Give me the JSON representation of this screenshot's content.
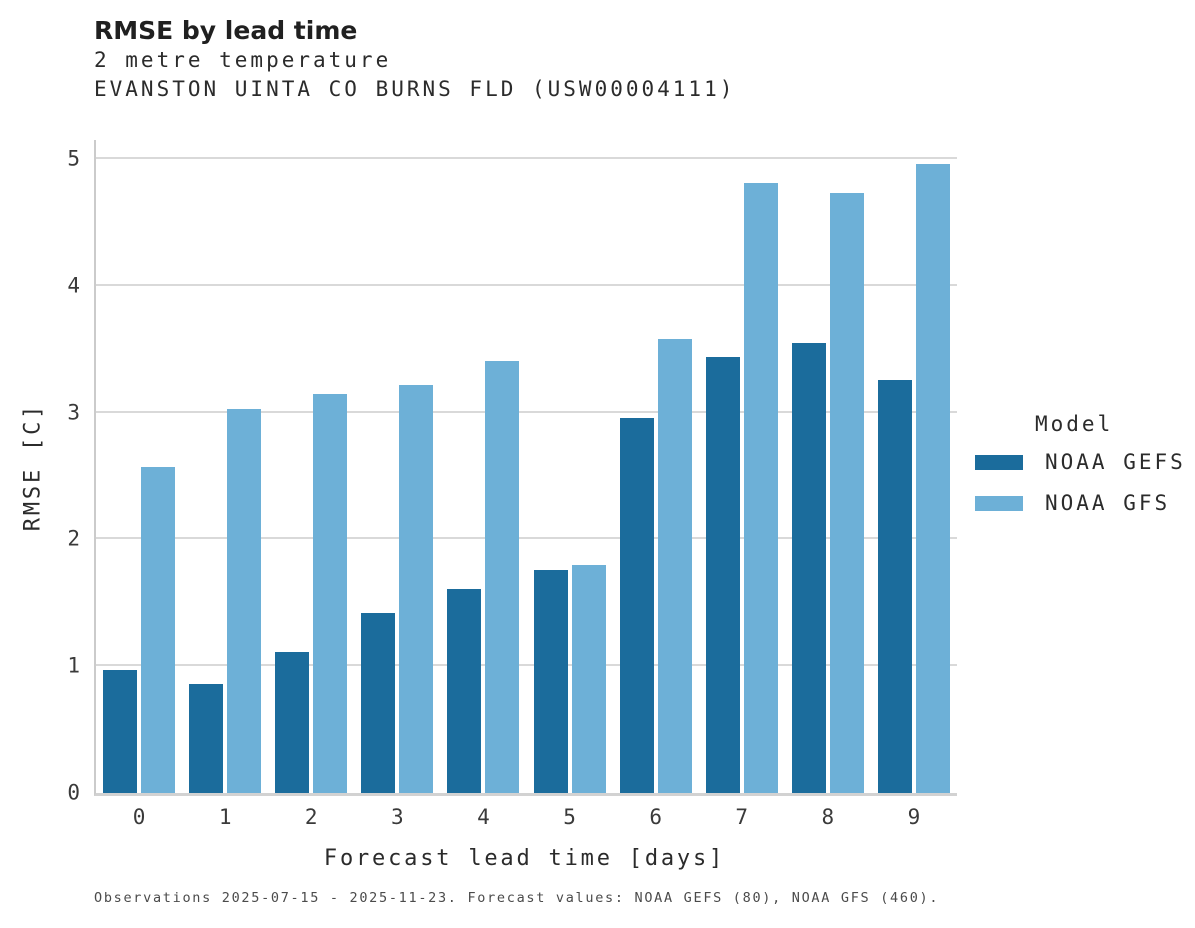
{
  "header": {
    "title": "RMSE by lead time",
    "subtitle_variable": "2 metre temperature",
    "subtitle_station": "EVANSTON UINTA CO BURNS FLD (USW00004111)"
  },
  "legend": {
    "title": "Model",
    "items": [
      {
        "label": "NOAA GEFS",
        "color": "#1b6c9c"
      },
      {
        "label": "NOAA GFS",
        "color": "#6db0d7"
      }
    ]
  },
  "footer": {
    "caption": "Observations 2025-07-15 - 2025-11-23. Forecast values: NOAA GEFS (80), NOAA GFS (460)."
  },
  "colors": {
    "gefs_bar": "#1b6c9c",
    "gfs_bar": "#6db0d7",
    "gridline": "#d9d9d9",
    "axis_spine": "#cbcbcb"
  },
  "chart_data": {
    "type": "bar",
    "title": "RMSE by lead time",
    "subtitle": [
      "2 metre temperature",
      "EVANSTON UINTA CO BURNS FLD (USW00004111)"
    ],
    "categories": [
      "0",
      "1",
      "2",
      "3",
      "4",
      "5",
      "6",
      "7",
      "8",
      "9"
    ],
    "series": [
      {
        "name": "NOAA GEFS",
        "color": "#1b6c9c",
        "values": [
          0.97,
          0.86,
          1.11,
          1.42,
          1.61,
          1.76,
          2.96,
          3.44,
          3.55,
          3.26
        ]
      },
      {
        "name": "NOAA GFS",
        "color": "#6db0d7",
        "values": [
          2.57,
          3.03,
          3.15,
          3.22,
          3.41,
          1.8,
          3.58,
          4.81,
          4.73,
          4.96
        ]
      }
    ],
    "xlabel": "Forecast lead time [days]",
    "ylabel": "RMSE [C]",
    "yticks": [
      0,
      1,
      2,
      3,
      4,
      5
    ],
    "ylim": [
      0,
      5.15
    ],
    "grid": true,
    "legend_title": "Model",
    "legend_position": "right"
  }
}
